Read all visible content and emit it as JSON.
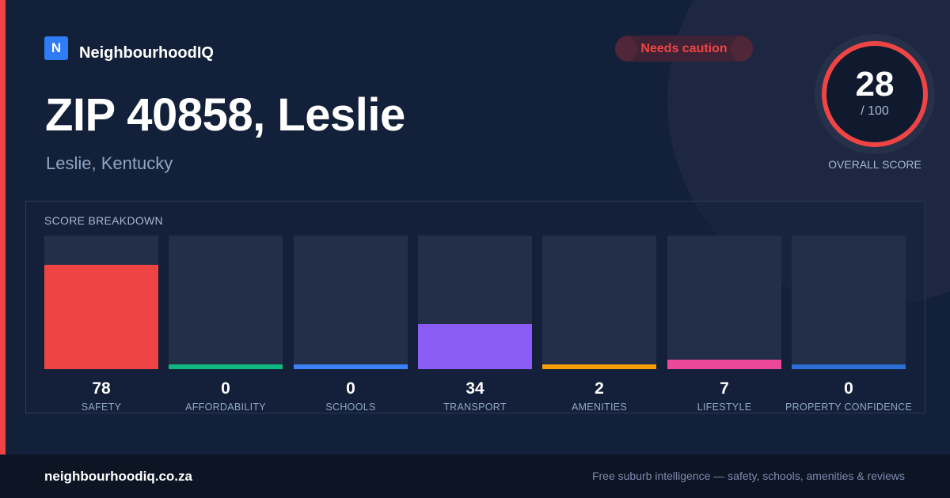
{
  "brand": {
    "logo_letter": "N",
    "name": "NeighbourhoodIQ"
  },
  "badge": {
    "label": "Needs caution",
    "color": "#ef4444"
  },
  "header": {
    "title": "ZIP 40858, Leslie",
    "subtitle": "Leslie, Kentucky"
  },
  "overall": {
    "score": "28",
    "out_of": "/ 100",
    "label": "OVERALL SCORE",
    "color": "#ef4444"
  },
  "breakdown": {
    "title": "SCORE BREAKDOWN"
  },
  "chart_data": {
    "type": "bar",
    "categories": [
      "SAFETY",
      "AFFORDABILITY",
      "SCHOOLS",
      "TRANSPORT",
      "AMENITIES",
      "LIFESTYLE",
      "PROPERTY CONFIDENCE"
    ],
    "values": [
      78,
      0,
      0,
      34,
      2,
      7,
      0
    ],
    "colors": [
      "#ef4444",
      "#10b981",
      "#3b82f6",
      "#8b5cf6",
      "#f59e0b",
      "#ec4899",
      "#2b6fd6"
    ],
    "ylim": [
      0,
      100
    ]
  },
  "footer": {
    "url": "neighbourhoodiq.co.za",
    "tagline": "Free suburb intelligence — safety, schools, amenities & reviews"
  }
}
